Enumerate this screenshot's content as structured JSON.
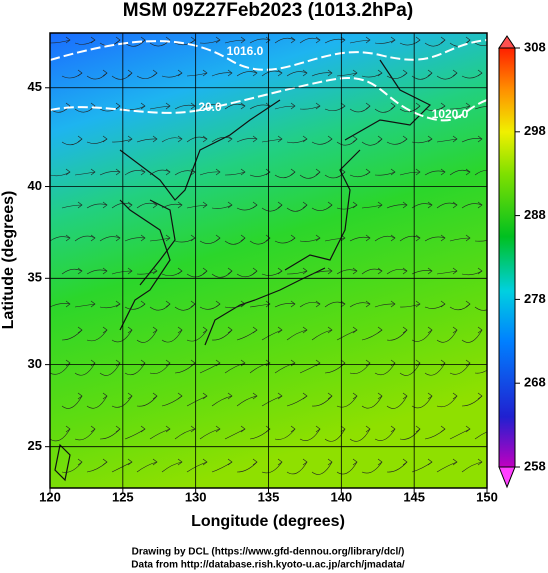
{
  "chart_data": {
    "type": "map",
    "title": "MSM 09Z27Feb2023 (1013.2hPa)",
    "xlabel": "Longitude (degrees)",
    "ylabel": "Latitude  (degrees)",
    "xlim": [
      120,
      150
    ],
    "ylim": [
      22.4,
      47.6
    ],
    "projection": "mercator",
    "xticks": [
      120,
      125,
      130,
      135,
      140,
      145,
      150
    ],
    "yticks": [
      25,
      30,
      35,
      40,
      45
    ],
    "grid": true,
    "colorbar": {
      "lim": [
        258,
        308
      ],
      "ticks": [
        258,
        268,
        278,
        288,
        298,
        308
      ]
    },
    "annotations": [
      "1016.0",
      "20.0",
      "1020.0"
    ],
    "footer": [
      "Drawing by DCL (https://www.gfd-dennou.org/library/dcl/)",
      "Data from http://database.rish.kyoto-u.ac.jp/arch/jmadata/"
    ]
  }
}
